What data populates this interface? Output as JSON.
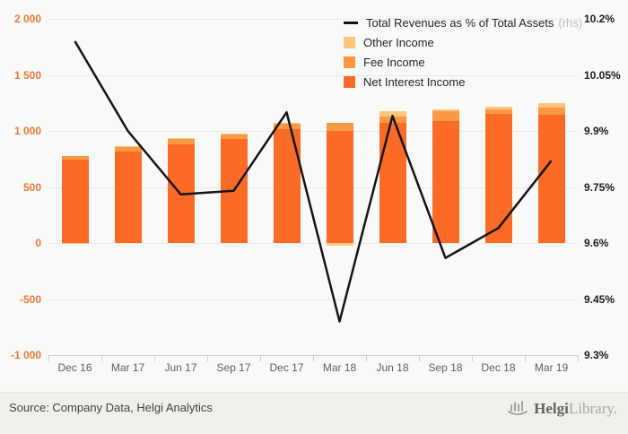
{
  "chart_data": {
    "type": "combo_stacked_bar_line",
    "title": "",
    "categories": [
      "Dec 16",
      "Mar 17",
      "Jun 17",
      "Sep 17",
      "Dec 17",
      "Mar 18",
      "Jun 18",
      "Sep 18",
      "Dec 18",
      "Mar 19"
    ],
    "series": [
      {
        "name": "Net Interest Income",
        "type": "bar",
        "axis": "left",
        "color": "#fb6b26",
        "values": [
          745,
          820,
          880,
          930,
          1015,
          1000,
          1075,
          1090,
          1150,
          1145
        ]
      },
      {
        "name": "Fee Income",
        "type": "bar",
        "axis": "left",
        "color": "#fa9843",
        "values": [
          30,
          40,
          48,
          42,
          48,
          75,
          50,
          90,
          45,
          60
        ]
      },
      {
        "name": "Other Income",
        "type": "bar",
        "axis": "left",
        "color": "#fcc47e",
        "values": [
          -10,
          8,
          8,
          8,
          10,
          -20,
          55,
          10,
          25,
          40
        ]
      },
      {
        "name": "Total Revenues as % of Total Assets",
        "type": "line",
        "axis": "right",
        "color": "#141414",
        "values": [
          10.14,
          9.9,
          9.73,
          9.74,
          9.95,
          9.39,
          9.94,
          9.56,
          9.64,
          9.82
        ]
      }
    ],
    "left_axis": {
      "min": -1000,
      "max": 2000,
      "step": 500,
      "tick_labels": [
        "2 000",
        "1 500",
        "1 000",
        "500",
        "0",
        "-500",
        "-1 000"
      ],
      "color": "#ee7835"
    },
    "right_axis": {
      "min": 9.3,
      "max": 10.2,
      "step": 0.15,
      "tick_labels": [
        "10.2%",
        "10.05%",
        "9.9%",
        "9.75%",
        "9.6%",
        "9.45%",
        "9.3%"
      ],
      "color": "#1d1d1d"
    },
    "grid": true,
    "legend_position": "top-right",
    "bar_stack_order_bottom_to_top": [
      "Net Interest Income",
      "Fee Income",
      "Other Income"
    ]
  },
  "legend": {
    "line_label": "Total Revenues as % of Total Assets",
    "line_suffix": "(rhs)",
    "items": [
      {
        "label": "Other Income",
        "color": "#fcc47e"
      },
      {
        "label": "Fee Income",
        "color": "#fa9843"
      },
      {
        "label": "Net Interest Income",
        "color": "#fb6b26"
      }
    ]
  },
  "footer": {
    "source": "Source: Company Data, Helgi Analytics"
  },
  "logo": {
    "bold": "Helgi",
    "light": "Library."
  }
}
